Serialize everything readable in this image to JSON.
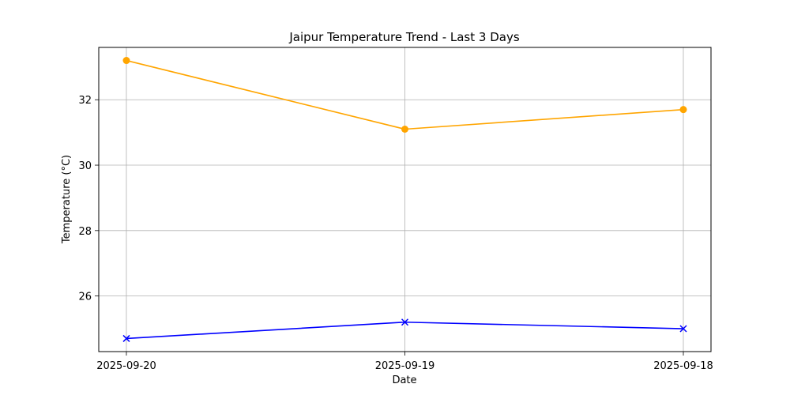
{
  "chart_data": {
    "type": "line",
    "title": "Jaipur Temperature Trend - Last 3 Days",
    "xlabel": "Date",
    "ylabel": "Temperature (°C)",
    "categories": [
      "2025-09-20",
      "2025-09-19",
      "2025-09-18"
    ],
    "yticks": [
      26,
      28,
      30,
      32
    ],
    "ylim": [
      24.3,
      33.6
    ],
    "grid": true,
    "series": [
      {
        "values": [
          33.2,
          31.1,
          31.7
        ],
        "color": "#ffa500",
        "marker": "circle"
      },
      {
        "values": [
          24.7,
          25.2,
          25.0
        ],
        "color": "#0000ff",
        "marker": "x"
      }
    ]
  }
}
